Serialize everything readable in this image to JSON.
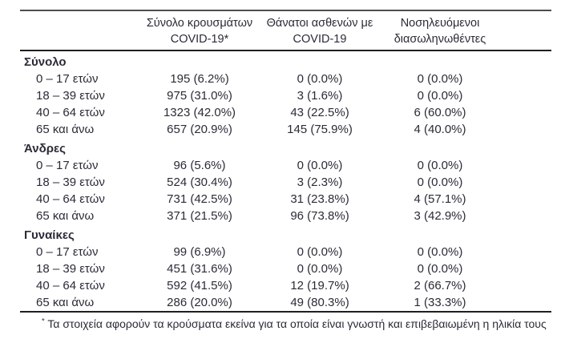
{
  "colors": {
    "text-color": "#2b2b38",
    "rule-dark": "#1f1f1f",
    "rule-gray": "#4d4d4d"
  },
  "table": {
    "columns": [
      {
        "line1": "Σύνολο κρουσμάτων",
        "line2": "COVID-19*"
      },
      {
        "line1": "Θάνατοι ασθενών με",
        "line2": "COVID-19"
      },
      {
        "line1": "Νοσηλευόμενοι",
        "line2": "διασωληνωθέντες"
      }
    ],
    "sections": [
      {
        "title": "Σύνολο",
        "rows": [
          {
            "label": "0 – 17 ετών",
            "cases": "195 (6.2%)",
            "deaths": "0 (0.0%)",
            "intubated": "0 (0.0%)"
          },
          {
            "label": "18 – 39 ετών",
            "cases": "975 (31.0%)",
            "deaths": "3 (1.6%)",
            "intubated": "0 (0.0%)"
          },
          {
            "label": "40 – 64 ετών",
            "cases": "1323 (42.0%)",
            "deaths": "43 (22.5%)",
            "intubated": "6 (60.0%)"
          },
          {
            "label": "65 και άνω",
            "cases": "657 (20.9%)",
            "deaths": "145 (75.9%)",
            "intubated": "4 (40.0%)"
          }
        ]
      },
      {
        "title": "Άνδρες",
        "rows": [
          {
            "label": "0 – 17 ετών",
            "cases": "96 (5.6%)",
            "deaths": "0 (0.0%)",
            "intubated": "0 (0.0%)"
          },
          {
            "label": "18 – 39 ετών",
            "cases": "524 (30.4%)",
            "deaths": "3 (2.3%)",
            "intubated": "0 (0.0%)"
          },
          {
            "label": "40 – 64 ετών",
            "cases": "731 (42.5%)",
            "deaths": "31 (23.8%)",
            "intubated": "4 (57.1%)"
          },
          {
            "label": "65 και άνω",
            "cases": "371 (21.5%)",
            "deaths": "96 (73.8%)",
            "intubated": "3 (42.9%)"
          }
        ]
      },
      {
        "title": "Γυναίκες",
        "rows": [
          {
            "label": "0 – 17 ετών",
            "cases": "99 (6.9%)",
            "deaths": "0 (0.0%)",
            "intubated": "0 (0.0%)"
          },
          {
            "label": "18 – 39 ετών",
            "cases": "451 (31.6%)",
            "deaths": "0 (0.0%)",
            "intubated": "0 (0.0%)"
          },
          {
            "label": "40 – 64 ετών",
            "cases": "592 (41.5%)",
            "deaths": "12 (19.7%)",
            "intubated": "2 (66.7%)"
          },
          {
            "label": "65 και άνω",
            "cases": "286 (20.0%)",
            "deaths": "49 (80.3%)",
            "intubated": "1 (33.3%)"
          }
        ]
      }
    ]
  },
  "footnote": {
    "marker": "*",
    "text": "Τα στοιχεία αφορούν τα κρούσματα εκείνα για τα οποία είναι γνωστή και επιβεβαιωμένη η ηλικία τους"
  }
}
